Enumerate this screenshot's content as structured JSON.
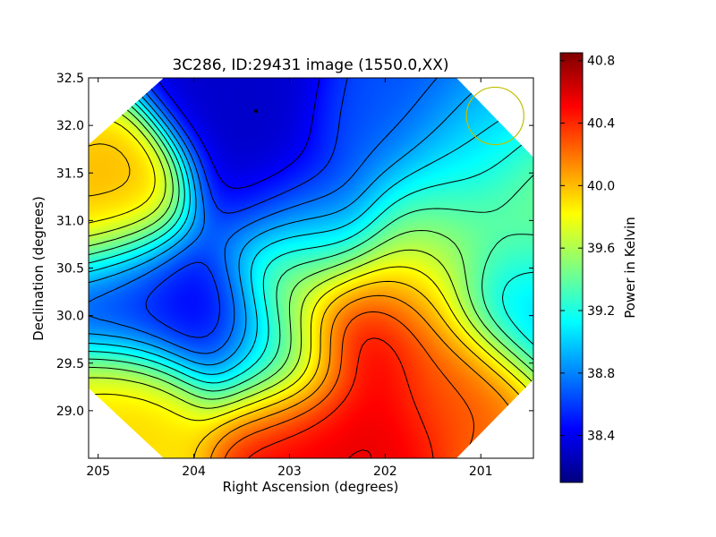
{
  "chart_data": {
    "type": "heatmap",
    "title": "3C286, ID:29431 image (1550.0,XX)",
    "xlabel": "Right Ascension (degrees)",
    "ylabel": "Declination (degrees)",
    "xlim": [
      205.1,
      200.45
    ],
    "ylim": [
      28.5,
      32.5
    ],
    "x_ticks": [
      {
        "value": 205,
        "label": "205"
      },
      {
        "value": 204,
        "label": "204"
      },
      {
        "value": 203,
        "label": "203"
      },
      {
        "value": 202,
        "label": "202"
      },
      {
        "value": 201,
        "label": "201"
      }
    ],
    "y_ticks": [
      {
        "value": 29.0,
        "label": "29.0"
      },
      {
        "value": 29.5,
        "label": "29.5"
      },
      {
        "value": 30.0,
        "label": "30.0"
      },
      {
        "value": 30.5,
        "label": "30.5"
      },
      {
        "value": 31.0,
        "label": "31.0"
      },
      {
        "value": 31.5,
        "label": "31.5"
      },
      {
        "value": 32.0,
        "label": "32.0"
      },
      {
        "value": 32.5,
        "label": "32.5"
      }
    ],
    "colorbar": {
      "label": "Power in Kelvin",
      "range": [
        38.1,
        40.85
      ],
      "ticks": [
        {
          "value": 38.4,
          "label": "38.4"
        },
        {
          "value": 38.8,
          "label": "38.8"
        },
        {
          "value": 39.2,
          "label": "39.2"
        },
        {
          "value": 39.6,
          "label": "39.6"
        },
        {
          "value": 40.0,
          "label": "40.0"
        },
        {
          "value": 40.4,
          "label": "40.4"
        },
        {
          "value": 40.8,
          "label": "40.8"
        }
      ]
    },
    "field_features": [
      {
        "ra": 204.8,
        "dec": 31.15,
        "value": 40.05
      },
      {
        "ra": 203.25,
        "dec": 31.25,
        "value": 38.25
      },
      {
        "ra": 203.9,
        "dec": 30.1,
        "value": 38.3
      },
      {
        "ra": 203.45,
        "dec": 32.3,
        "value": 38.3
      },
      {
        "ra": 202.3,
        "dec": 29.85,
        "value": 40.85
      },
      {
        "ra": 202.2,
        "dec": 28.7,
        "value": 40.6
      },
      {
        "ra": 201.3,
        "dec": 29.3,
        "value": 40.3
      },
      {
        "ra": 202.95,
        "dec": 28.75,
        "value": 40.6
      },
      {
        "ra": 202.95,
        "dec": 30.55,
        "value": 39.9
      },
      {
        "ra": 203.1,
        "dec": 29.6,
        "value": 39.0
      },
      {
        "ra": 200.6,
        "dec": 30.2,
        "value": 38.95
      },
      {
        "ra": 201.3,
        "dec": 31.5,
        "value": 39.05
      },
      {
        "ra": 201.5,
        "dec": 30.9,
        "value": 39.6
      },
      {
        "ra": 200.5,
        "dec": 30.9,
        "value": 39.5
      },
      {
        "ra": 204.6,
        "dec": 29.05,
        "value": 39.95
      },
      {
        "ra": 204.6,
        "dec": 30.2,
        "value": 38.55
      },
      {
        "ra": 202.6,
        "dec": 30.9,
        "value": 38.6
      },
      {
        "ra": 201.8,
        "dec": 30.25,
        "value": 40.0
      },
      {
        "ra": 202.0,
        "dec": 31.95,
        "value": 38.65
      }
    ],
    "field_base": 38.6,
    "contour_levels": [
      38.3,
      38.45,
      38.6,
      38.75,
      38.9,
      39.05,
      39.2,
      39.35,
      39.5,
      39.65,
      39.8,
      39.95,
      40.1,
      40.25,
      40.4,
      40.55,
      40.7
    ],
    "markers": [
      {
        "kind": "circle",
        "color": "#bfbf00",
        "ra": 200.85,
        "dec": 32.1,
        "radius_deg": 0.3
      },
      {
        "kind": "dot",
        "color": "#000000",
        "ra": 203.35,
        "dec": 32.15
      }
    ]
  }
}
